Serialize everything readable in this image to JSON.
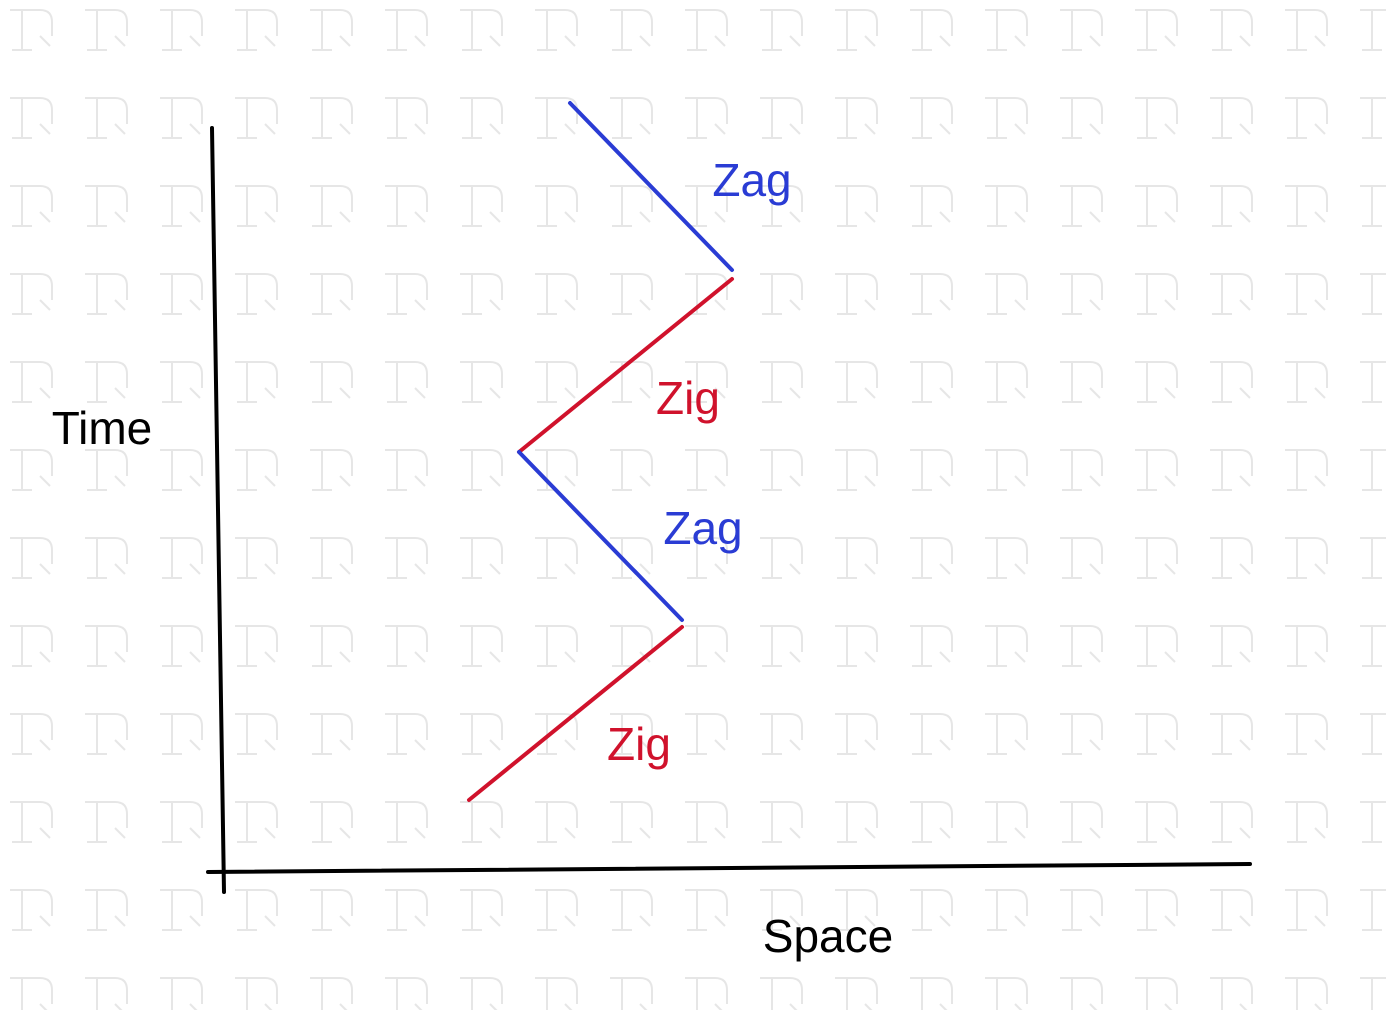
{
  "axes": {
    "y_label": "Time",
    "x_label": "Space"
  },
  "segments": [
    {
      "label": "Zag",
      "color": "#2a3cd4"
    },
    {
      "label": "Zig",
      "color": "#d0122c"
    },
    {
      "label": "Zag",
      "color": "#2a3cd4"
    },
    {
      "label": "Zig",
      "color": "#d0122c"
    }
  ]
}
